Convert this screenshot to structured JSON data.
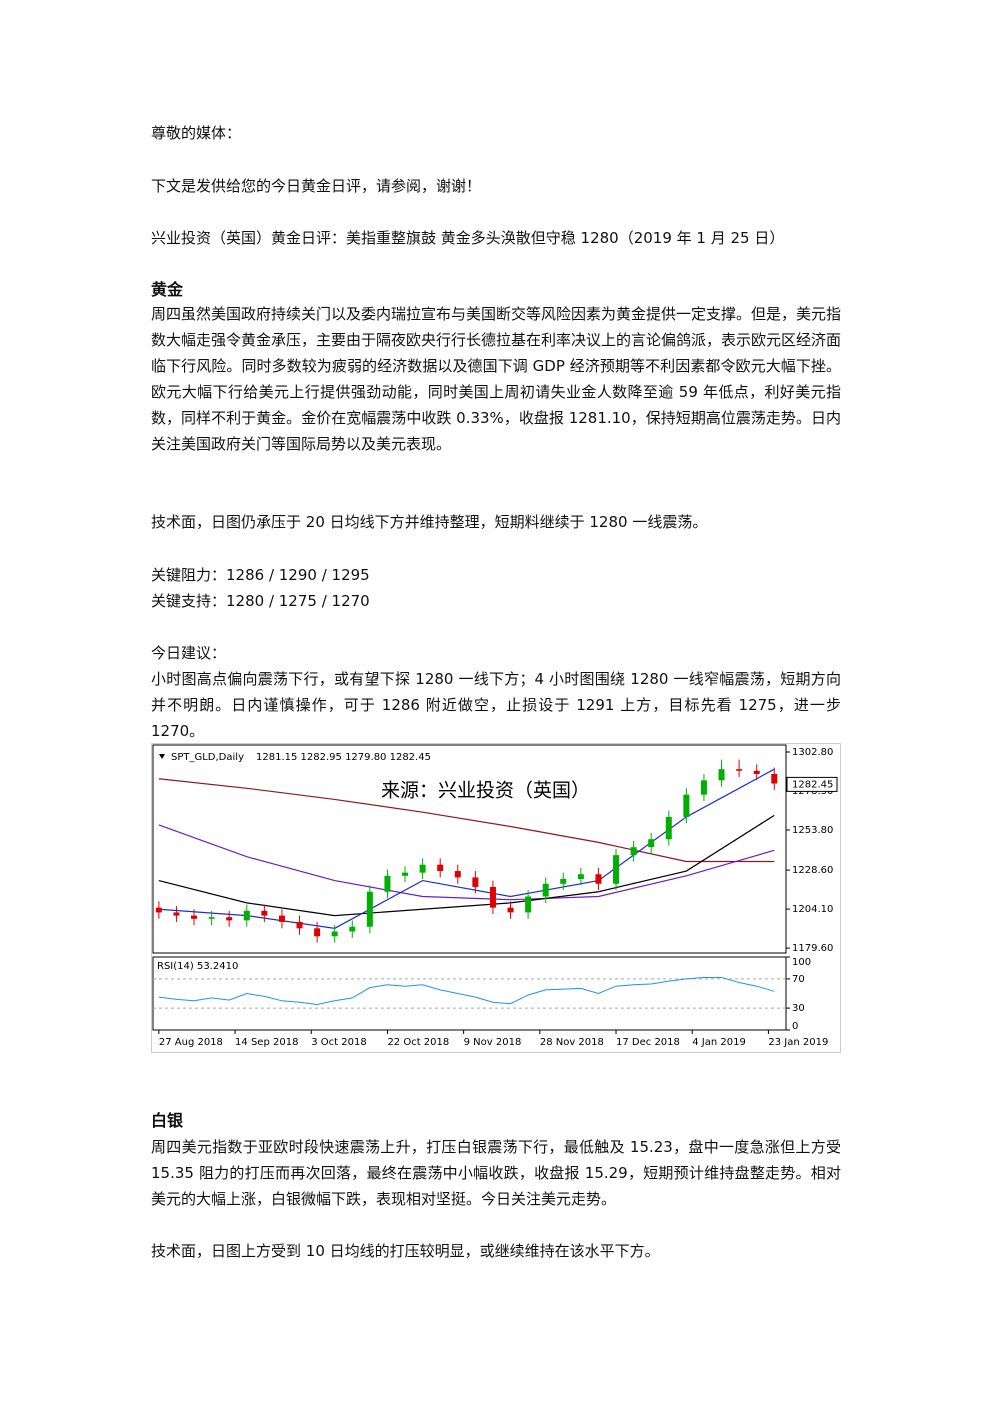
{
  "greeting": "尊敬的媒体：",
  "intro": "下文是发供给您的今日黄金日评，请参阅，谢谢！",
  "headline": "兴业投资（英国）黄金日评：美指重整旗鼓  黄金多头涣散但守稳 1280（2019 年 1 月 25 日）",
  "gold": {
    "heading": "黄金",
    "paragraph": "周四虽然美国政府持续关门以及委内瑞拉宣布与美国断交等风险因素为黄金提供一定支撑。但是，美元指数大幅走强令黄金承压，主要由于隔夜欧央行行长德拉基在利率决议上的言论偏鸽派，表示欧元区经济面临下行风险。同时多数较为疲弱的经济数据以及德国下调 GDP 经济预期等不利因素都令欧元大幅下挫。欧元大幅下行给美元上行提供强劲动能，同时美国上周初请失业金人数降至逾 59 年低点，利好美元指数，同样不利于黄金。金价在宽幅震荡中收跌 0.33%，收盘报 1281.10，保持短期高位震荡走势。日内关注美国政府关门等国际局势以及美元表现。",
    "technical": "技术面，日图仍承压于 20 日均线下方并维持整理，短期料继续于 1280 一线震荡。",
    "resistance": "关键阻力：1286 / 1290 / 1295",
    "support": "关键支持：1280 / 1275 / 1270",
    "advice_label": "今日建议：",
    "advice": "小时图高点偏向震荡下行，或有望下探 1280 一线下方；4 小时图围绕 1280 一线窄幅震荡，短期方向并不明朗。日内谨慎操作，可于 1286 附近做空，止损设于 1291 上方，目标先看 1275，进一步 1270。"
  },
  "chart_data": {
    "type": "candlestick",
    "title": "SPT_GLD,Daily",
    "ohlc_label": "1281.15 1282.95 1279.80 1282.45",
    "watermark": "来源：兴业投资（英国）",
    "up_color": "#00b000",
    "down_color": "#e00000",
    "x": [
      0,
      3,
      6,
      9,
      12,
      15,
      18,
      21,
      24,
      27,
      30,
      33,
      36,
      39,
      42,
      45,
      48,
      51,
      54,
      57,
      60,
      63,
      66,
      69,
      72,
      75,
      78,
      81,
      84,
      87,
      90,
      93,
      96,
      99,
      102,
      105
    ],
    "open": [
      1205,
      1202,
      1200,
      1198,
      1199,
      1197,
      1203,
      1200,
      1196,
      1192,
      1187,
      1190,
      1193,
      1215,
      1225,
      1227,
      1232,
      1228,
      1224,
      1218,
      1205,
      1202,
      1212,
      1220,
      1223,
      1226,
      1220,
      1238,
      1243,
      1248,
      1262,
      1276,
      1285,
      1292,
      1291,
      1289
    ],
    "high": [
      1209,
      1206,
      1204,
      1203,
      1203,
      1207,
      1207,
      1204,
      1200,
      1196,
      1194,
      1197,
      1219,
      1229,
      1231,
      1236,
      1236,
      1232,
      1228,
      1222,
      1209,
      1216,
      1224,
      1227,
      1230,
      1230,
      1242,
      1247,
      1252,
      1266,
      1280,
      1289,
      1298,
      1298,
      1295,
      1293
    ],
    "low": [
      1198,
      1196,
      1194,
      1194,
      1193,
      1193,
      1196,
      1192,
      1188,
      1183,
      1183,
      1186,
      1189,
      1211,
      1221,
      1223,
      1224,
      1220,
      1214,
      1201,
      1198,
      1198,
      1208,
      1216,
      1219,
      1216,
      1216,
      1234,
      1239,
      1244,
      1258,
      1272,
      1281,
      1287,
      1285,
      1279
    ],
    "close": [
      1202,
      1200,
      1198,
      1199,
      1197,
      1203,
      1200,
      1196,
      1192,
      1187,
      1190,
      1193,
      1215,
      1225,
      1227,
      1232,
      1228,
      1224,
      1218,
      1205,
      1202,
      1212,
      1220,
      1223,
      1226,
      1220,
      1238,
      1243,
      1248,
      1262,
      1276,
      1285,
      1292,
      1291,
      1289,
      1283
    ],
    "xlim": [
      -1,
      107
    ],
    "xticks": [
      {
        "value": 0,
        "label": "27 Aug 2018"
      },
      {
        "value": 13,
        "label": "14 Sep 2018"
      },
      {
        "value": 26,
        "label": "3 Oct 2018"
      },
      {
        "value": 39,
        "label": "22 Oct 2018"
      },
      {
        "value": 52,
        "label": "9 Nov 2018"
      },
      {
        "value": 65,
        "label": "28 Nov 2018"
      },
      {
        "value": 78,
        "label": "17 Dec 2018"
      },
      {
        "value": 91,
        "label": "4 Jan 2019"
      },
      {
        "value": 104,
        "label": "23 Jan 2019"
      }
    ],
    "ylim": [
      1176.5,
      1307.2
    ],
    "yticks": [
      {
        "value": 1302.8,
        "label": "1302.80"
      },
      {
        "value": 1278.3,
        "label": "1278.30"
      },
      {
        "value": 1253.8,
        "label": "1253.80"
      },
      {
        "value": 1228.6,
        "label": "1228.60"
      },
      {
        "value": 1204.1,
        "label": "1204.10"
      },
      {
        "value": 1179.6,
        "label": "1179.60"
      }
    ],
    "last_price": {
      "value": 1282.45,
      "label": "1282.45"
    },
    "lines": [
      {
        "color": "#8b1a1a",
        "x": [
          0,
          15,
          30,
          45,
          60,
          75,
          90,
          105
        ],
        "values": [
          1286,
          1280,
          1273,
          1265,
          1256,
          1246,
          1234,
          1234
        ]
      },
      {
        "color": "#6a1fbf",
        "x": [
          0,
          15,
          30,
          45,
          60,
          75,
          90,
          105
        ],
        "values": [
          1257,
          1237,
          1222,
          1212,
          1210,
          1212,
          1225,
          1241
        ]
      },
      {
        "color": "#000000",
        "x": [
          0,
          15,
          30,
          45,
          60,
          75,
          90,
          105
        ],
        "values": [
          1222,
          1208,
          1200,
          1204,
          1208,
          1215,
          1228,
          1263
        ]
      },
      {
        "color": "#1a2fd0",
        "x": [
          0,
          15,
          30,
          45,
          60,
          75,
          90,
          105
        ],
        "values": [
          1204,
          1200,
          1192,
          1222,
          1212,
          1222,
          1262,
          1292
        ]
      }
    ],
    "rsi": {
      "label": "RSI(14) 53.2410",
      "color": "#1e90ff",
      "ylim": [
        0,
        100
      ],
      "yticks": [
        100,
        70,
        30,
        0
      ],
      "values": [
        45,
        42,
        40,
        44,
        41,
        50,
        46,
        40,
        38,
        35,
        40,
        44,
        58,
        62,
        60,
        62,
        55,
        50,
        45,
        38,
        36,
        48,
        55,
        56,
        57,
        50,
        60,
        62,
        63,
        67,
        70,
        72,
        72,
        65,
        60,
        53
      ]
    }
  },
  "silver": {
    "heading": "白银",
    "paragraph": "周四美元指数于亚欧时段快速震荡上升，打压白银震荡下行，最低触及 15.23，盘中一度急涨但上方受 15.35 阻力的打压而再次回落，最终在震荡中小幅收跌，收盘报 15.29，短期预计维持盘整走势。相对美元的大幅上涨，白银微幅下跌，表现相对坚挺。今日关注美元走势。",
    "technical": "技术面，日图上方受到 10 日均线的打压较明显，或继续维持在该水平下方。"
  }
}
